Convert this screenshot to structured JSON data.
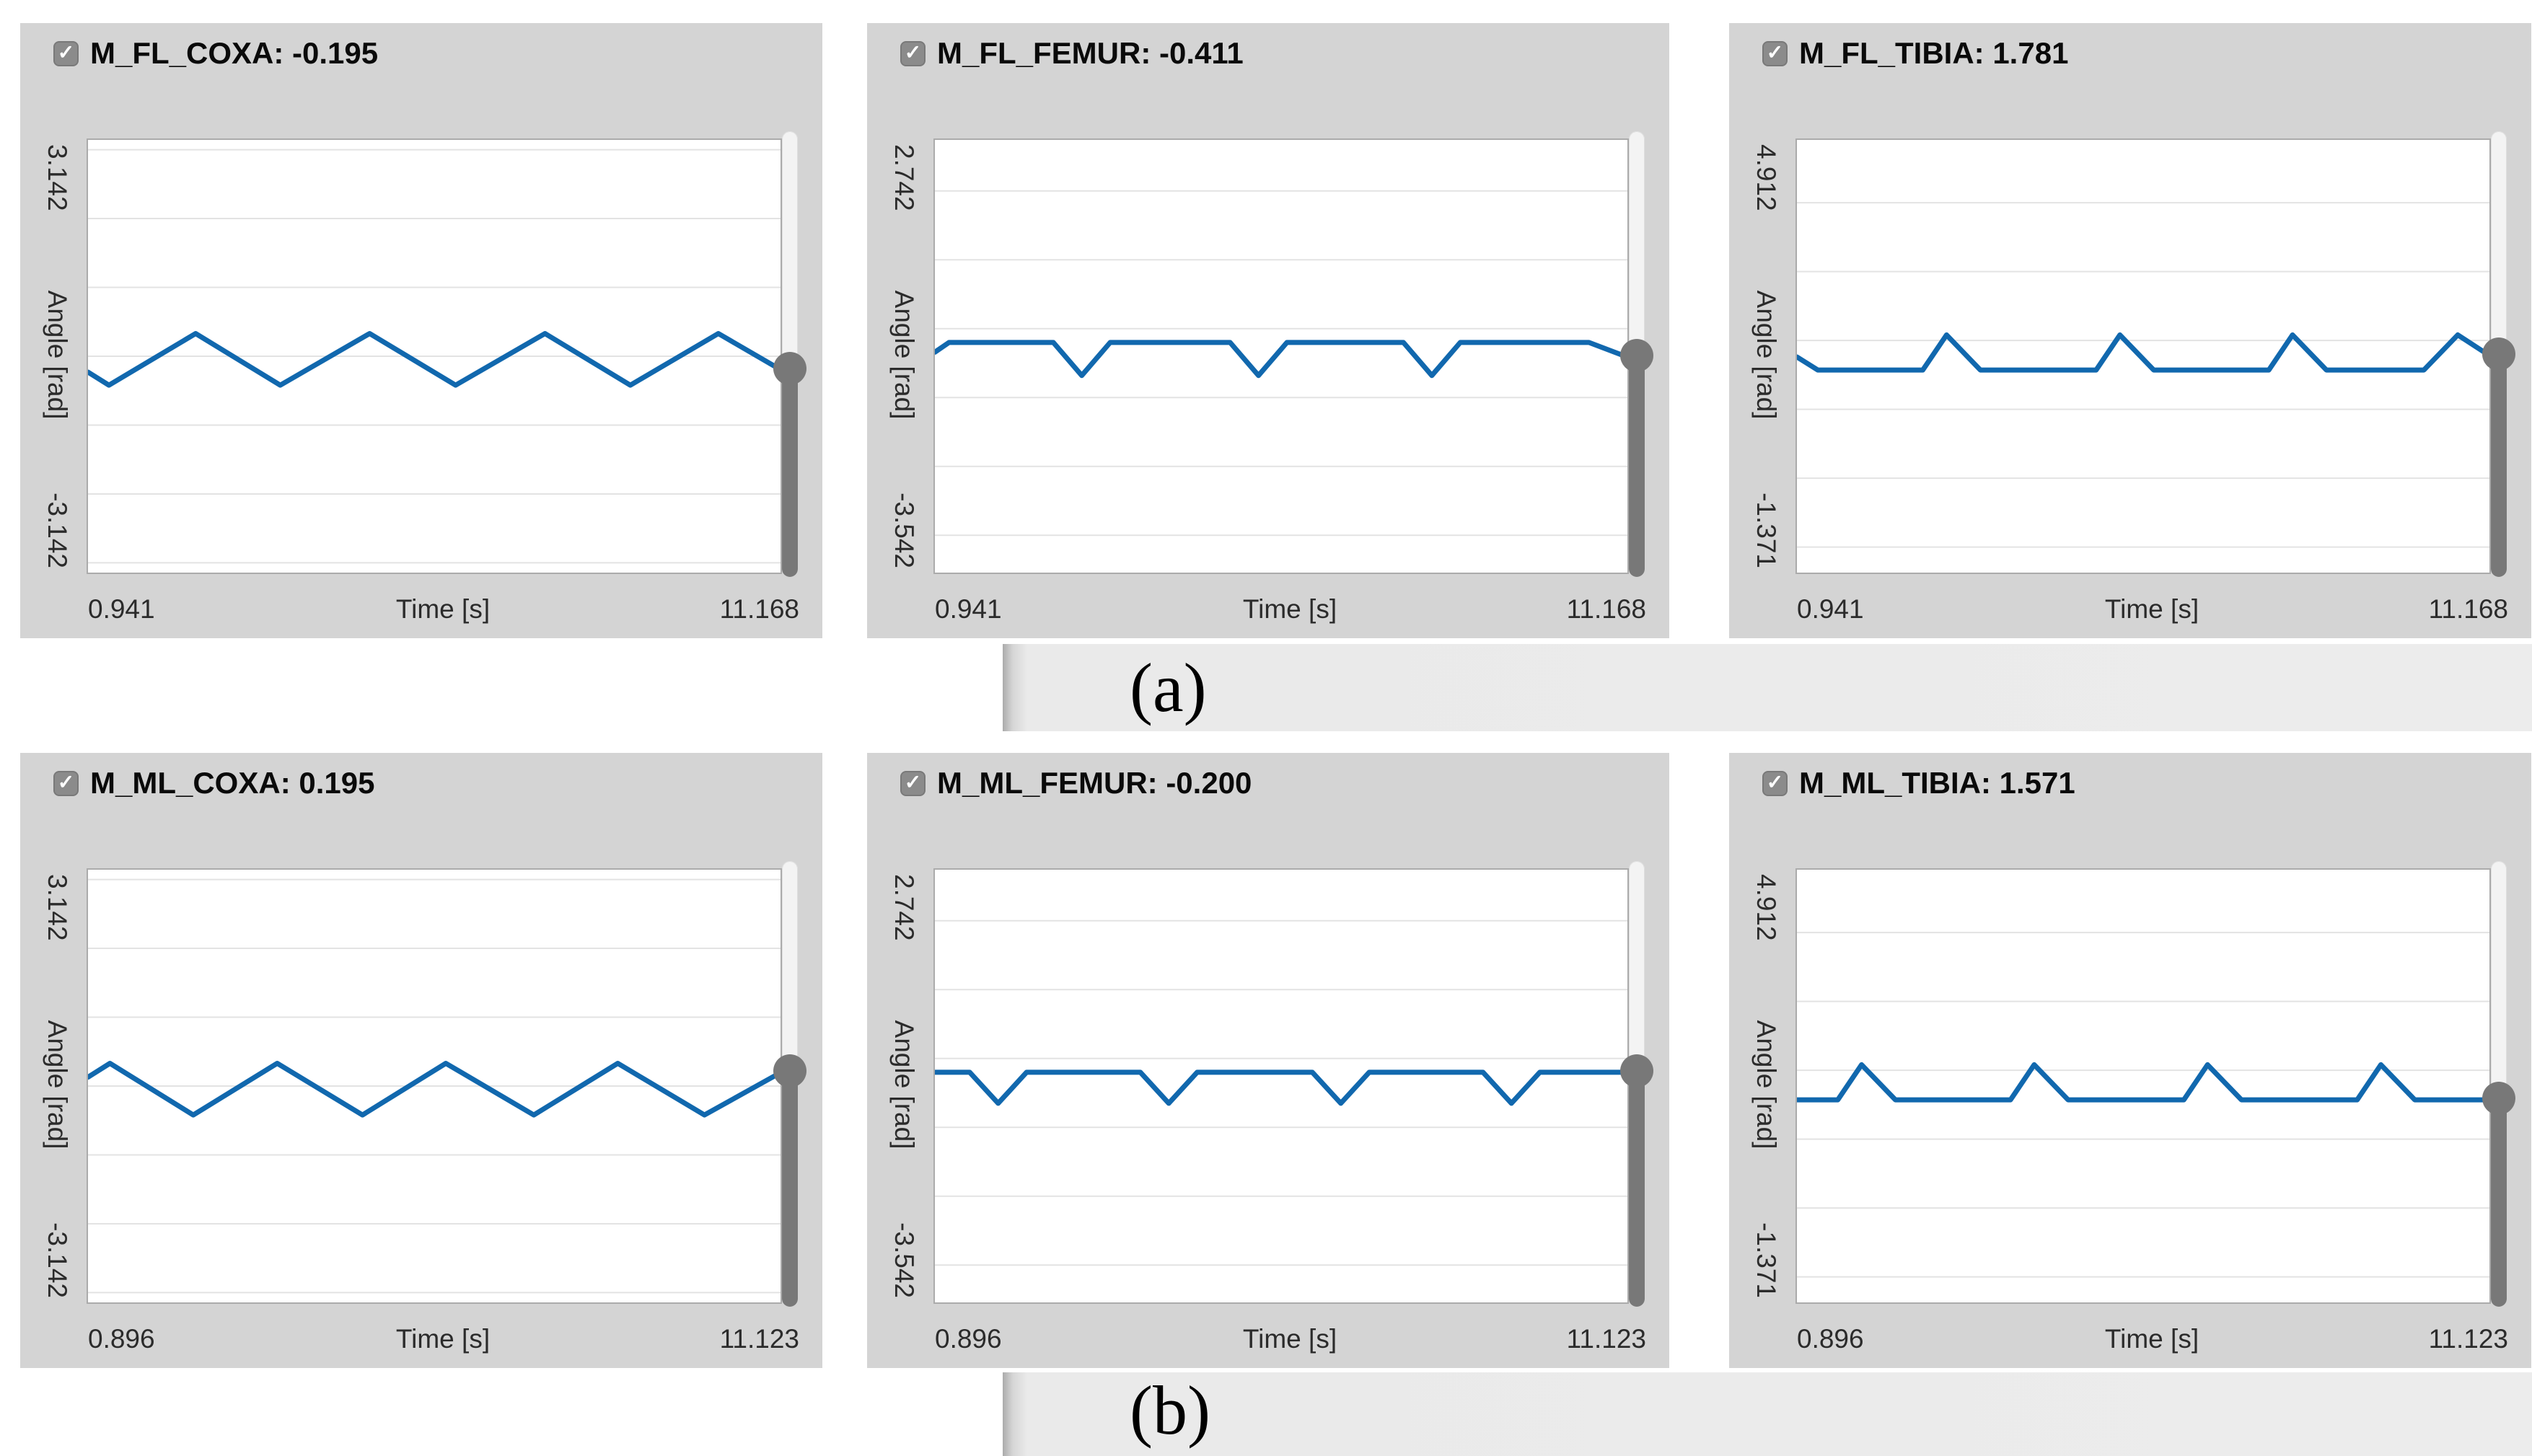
{
  "ui": {
    "checkmark": "✓",
    "panel_background": "#d4d4d4",
    "plot_background": "#ffffff",
    "grid_color": "#e3e3e3",
    "slider_color": "#787878",
    "accent_line_color": "#1168ae"
  },
  "captions": {
    "a": {
      "label": "(a)"
    },
    "b": {
      "label": "(b)"
    }
  },
  "chart_data": [
    {
      "type": "line",
      "row": "a",
      "title": "M_FL_COXA: -0.195",
      "checked": true,
      "current_value": -0.195,
      "xlabel": "Time [s]",
      "ylabel": "Angle [rad]",
      "xlim": [
        0.941,
        11.168
      ],
      "ylim": [
        -3.142,
        3.142
      ],
      "x_tick_labels": [
        "0.941",
        "11.168"
      ],
      "y_tick_labels": [
        "3.142",
        "-3.142"
      ],
      "grid": "horizontal lines at integer rad values",
      "legend": "none",
      "line_color": "#1168ae",
      "points": [
        [
          0.941,
          -0.23
        ],
        [
          1.25,
          -0.42
        ],
        [
          2.53,
          0.33
        ],
        [
          3.78,
          -0.42
        ],
        [
          5.1,
          0.33
        ],
        [
          6.37,
          -0.42
        ],
        [
          7.69,
          0.33
        ],
        [
          8.95,
          -0.42
        ],
        [
          10.25,
          0.33
        ],
        [
          11.168,
          -0.195
        ]
      ]
    },
    {
      "type": "line",
      "row": "a",
      "title": "M_FL_FEMUR: -0.411",
      "checked": true,
      "current_value": -0.411,
      "xlabel": "Time [s]",
      "ylabel": "Angle [rad]",
      "xlim": [
        0.941,
        11.168
      ],
      "ylim": [
        -3.542,
        2.742
      ],
      "x_tick_labels": [
        "0.941",
        "11.168"
      ],
      "y_tick_labels": [
        "2.742",
        "-3.542"
      ],
      "grid": "horizontal lines at integer rad values",
      "legend": "none",
      "line_color": "#1168ae",
      "points": [
        [
          0.941,
          -0.34
        ],
        [
          1.15,
          -0.2
        ],
        [
          2.69,
          -0.2
        ],
        [
          3.11,
          -0.68
        ],
        [
          3.53,
          -0.2
        ],
        [
          5.3,
          -0.2
        ],
        [
          5.72,
          -0.68
        ],
        [
          6.14,
          -0.2
        ],
        [
          7.86,
          -0.2
        ],
        [
          8.28,
          -0.68
        ],
        [
          8.7,
          -0.2
        ],
        [
          10.6,
          -0.2
        ],
        [
          11.168,
          -0.411
        ]
      ]
    },
    {
      "type": "line",
      "row": "a",
      "title": "M_FL_TIBIA: 1.781",
      "checked": true,
      "current_value": 1.781,
      "xlabel": "Time [s]",
      "ylabel": "Angle [rad]",
      "xlim": [
        0.941,
        11.168
      ],
      "ylim": [
        -1.371,
        4.912
      ],
      "x_tick_labels": [
        "0.941",
        "11.168"
      ],
      "y_tick_labels": [
        "4.912",
        "-1.371"
      ],
      "grid": "horizontal lines at integer rad values",
      "legend": "none",
      "line_color": "#1168ae",
      "points": [
        [
          0.941,
          1.76
        ],
        [
          1.25,
          1.571
        ],
        [
          2.8,
          1.571
        ],
        [
          3.15,
          2.08
        ],
        [
          3.65,
          1.571
        ],
        [
          5.36,
          1.571
        ],
        [
          5.71,
          2.08
        ],
        [
          6.21,
          1.571
        ],
        [
          7.91,
          1.571
        ],
        [
          8.26,
          2.08
        ],
        [
          8.76,
          1.571
        ],
        [
          10.2,
          1.571
        ],
        [
          10.7,
          2.08
        ],
        [
          11.168,
          1.781
        ]
      ]
    },
    {
      "type": "line",
      "row": "b",
      "title": "M_ML_COXA: 0.195",
      "checked": true,
      "current_value": 0.195,
      "xlabel": "Time [s]",
      "ylabel": "Angle [rad]",
      "xlim": [
        0.896,
        11.123
      ],
      "ylim": [
        -3.142,
        3.142
      ],
      "x_tick_labels": [
        "0.896",
        "11.123"
      ],
      "y_tick_labels": [
        "3.142",
        "-3.142"
      ],
      "grid": "horizontal lines at integer rad values",
      "legend": "none",
      "line_color": "#1168ae",
      "points": [
        [
          0.896,
          0.13
        ],
        [
          1.22,
          0.33
        ],
        [
          2.45,
          -0.42
        ],
        [
          3.69,
          0.33
        ],
        [
          4.95,
          -0.42
        ],
        [
          6.18,
          0.33
        ],
        [
          7.48,
          -0.42
        ],
        [
          8.72,
          0.33
        ],
        [
          10.0,
          -0.42
        ],
        [
          11.123,
          0.195
        ]
      ]
    },
    {
      "type": "line",
      "row": "b",
      "title": "M_ML_FEMUR: -0.200",
      "checked": true,
      "current_value": -0.2,
      "xlabel": "Time [s]",
      "ylabel": "Angle [rad]",
      "xlim": [
        0.896,
        11.123
      ],
      "ylim": [
        -3.542,
        2.742
      ],
      "x_tick_labels": [
        "0.896",
        "11.123"
      ],
      "y_tick_labels": [
        "2.742",
        "-3.542"
      ],
      "grid": "horizontal lines at integer rad values",
      "legend": "none",
      "line_color": "#1168ae",
      "points": [
        [
          0.896,
          -0.2
        ],
        [
          1.41,
          -0.2
        ],
        [
          1.83,
          -0.65
        ],
        [
          2.25,
          -0.2
        ],
        [
          3.93,
          -0.2
        ],
        [
          4.35,
          -0.65
        ],
        [
          4.77,
          -0.2
        ],
        [
          6.47,
          -0.2
        ],
        [
          6.89,
          -0.65
        ],
        [
          7.31,
          -0.2
        ],
        [
          8.99,
          -0.2
        ],
        [
          9.41,
          -0.65
        ],
        [
          9.83,
          -0.2
        ],
        [
          11.123,
          -0.2
        ]
      ]
    },
    {
      "type": "line",
      "row": "b",
      "title": "M_ML_TIBIA: 1.571",
      "checked": true,
      "current_value": 1.571,
      "xlabel": "Time [s]",
      "ylabel": "Angle [rad]",
      "xlim": [
        0.896,
        11.123
      ],
      "ylim": [
        -1.371,
        4.912
      ],
      "x_tick_labels": [
        "0.896",
        "11.123"
      ],
      "y_tick_labels": [
        "4.912",
        "-1.371"
      ],
      "grid": "horizontal lines at integer rad values",
      "legend": "none",
      "line_color": "#1168ae",
      "points": [
        [
          0.896,
          1.571
        ],
        [
          1.5,
          1.571
        ],
        [
          1.85,
          2.08
        ],
        [
          2.35,
          1.571
        ],
        [
          4.05,
          1.571
        ],
        [
          4.4,
          2.08
        ],
        [
          4.9,
          1.571
        ],
        [
          6.61,
          1.571
        ],
        [
          6.96,
          2.08
        ],
        [
          7.46,
          1.571
        ],
        [
          9.17,
          1.571
        ],
        [
          9.52,
          2.08
        ],
        [
          10.02,
          1.571
        ],
        [
          11.123,
          1.571
        ]
      ]
    }
  ]
}
